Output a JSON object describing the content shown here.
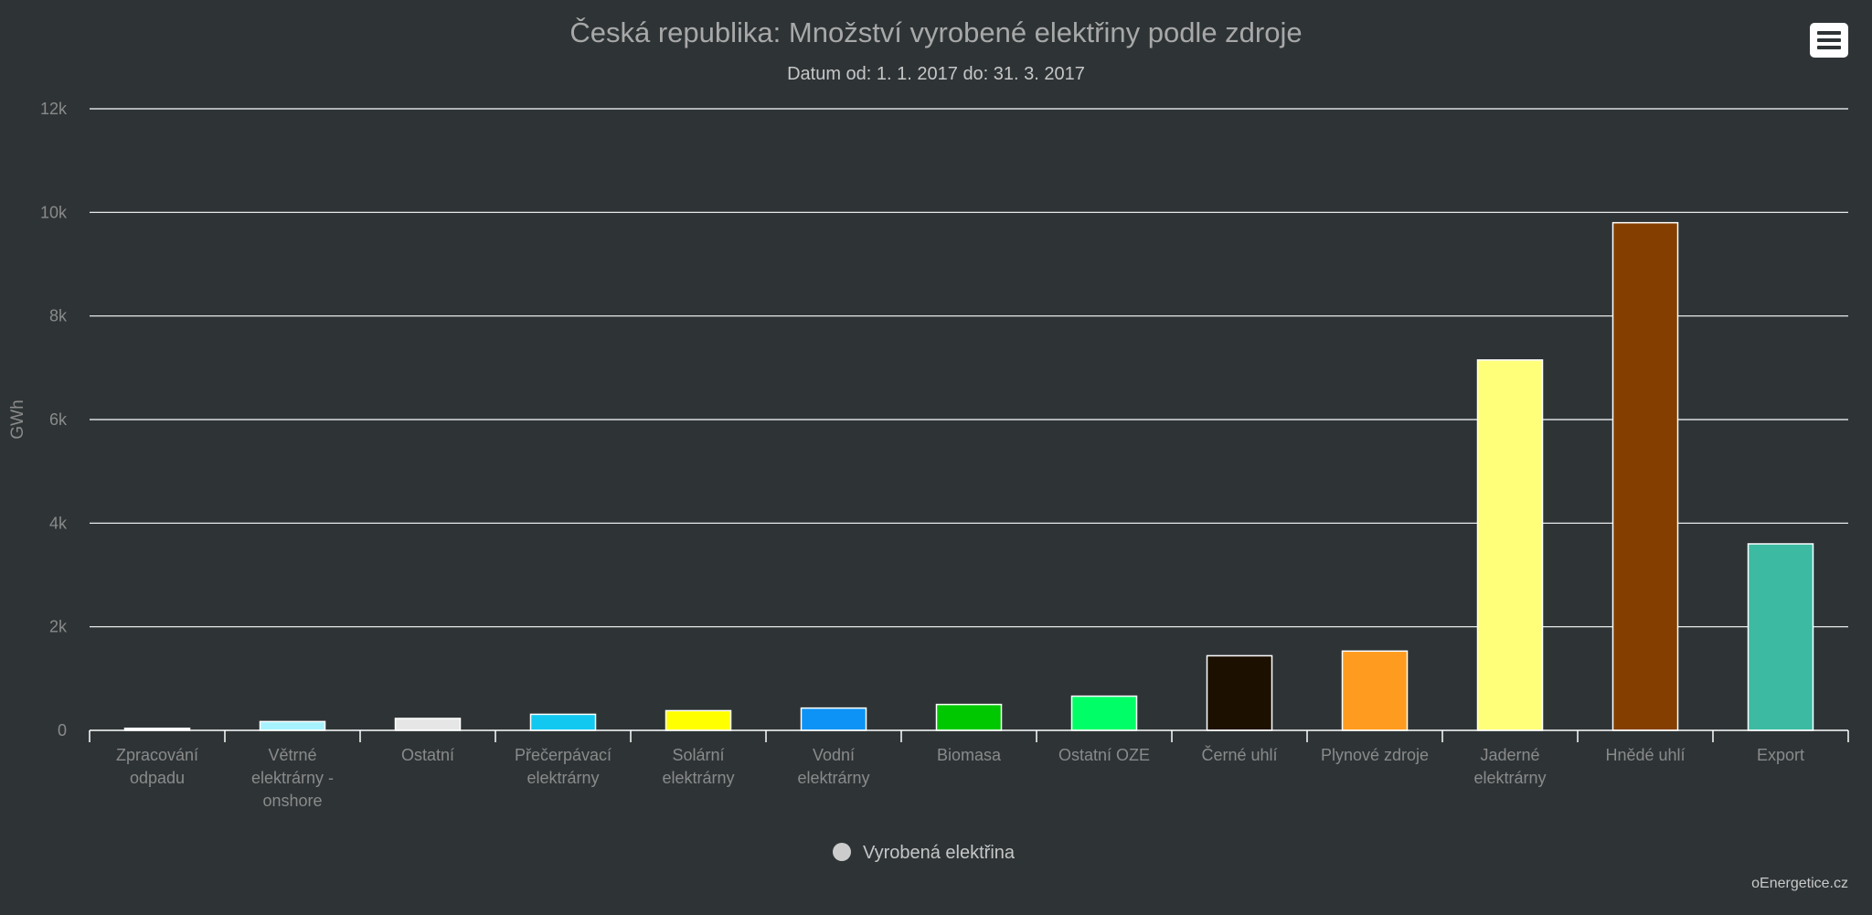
{
  "chart_data": {
    "type": "bar",
    "title": "Česká republika: Množství vyrobené elektřiny podle zdroje",
    "subtitle": "Datum od: 1. 1. 2017 do: 31. 3. 2017",
    "ylabel": "GWh",
    "xlabel": "",
    "ylim": [
      0,
      12000
    ],
    "yticks": [
      0,
      2000,
      4000,
      6000,
      8000,
      10000,
      12000
    ],
    "ytick_labels": [
      "0",
      "2k",
      "4k",
      "6k",
      "8k",
      "10k",
      "12k"
    ],
    "grid": true,
    "legend_placement": "bottom-center",
    "categories": [
      "Zpracování odpadu",
      "Větrné elektrárny - onshore",
      "Ostatní",
      "Přečerpávací elektrárny",
      "Solární elektrárny",
      "Vodní elektrárny",
      "Biomasa",
      "Ostatní OZE",
      "Černé uhlí",
      "Plynové zdroje",
      "Jaderné elektrárny",
      "Hnědé uhlí",
      "Export"
    ],
    "category_lines": [
      [
        "Zpracování",
        "odpadu"
      ],
      [
        "Větrné",
        "elektrárny -",
        "onshore"
      ],
      [
        "Ostatní"
      ],
      [
        "Přečerpávací",
        "elektrárny"
      ],
      [
        "Solární",
        "elektrárny"
      ],
      [
        "Vodní",
        "elektrárny"
      ],
      [
        "Biomasa"
      ],
      [
        "Ostatní OZE"
      ],
      [
        "Černé uhlí"
      ],
      [
        "Plynové zdroje"
      ],
      [
        "Jaderné",
        "elektrárny"
      ],
      [
        "Hnědé uhlí"
      ],
      [
        "Export"
      ]
    ],
    "series": [
      {
        "name": "Vyrobená elektřina",
        "values": [
          40,
          170,
          230,
          310,
          380,
          430,
          500,
          660,
          1440,
          1530,
          7150,
          9800,
          3600
        ],
        "colors": [
          "#ffffff",
          "#a6f3ff",
          "#e6e6e6",
          "#12c8f0",
          "#ffff00",
          "#0d93f5",
          "#00c800",
          "#00ff66",
          "#1c1000",
          "#ff9c1f",
          "#ffff7a",
          "#843f00",
          "#3cbba2"
        ]
      }
    ],
    "legend_marker_color": "#cccccc"
  },
  "credit": "oEnergetice.cz",
  "menu": {
    "icon": "hamburger-menu-icon"
  }
}
